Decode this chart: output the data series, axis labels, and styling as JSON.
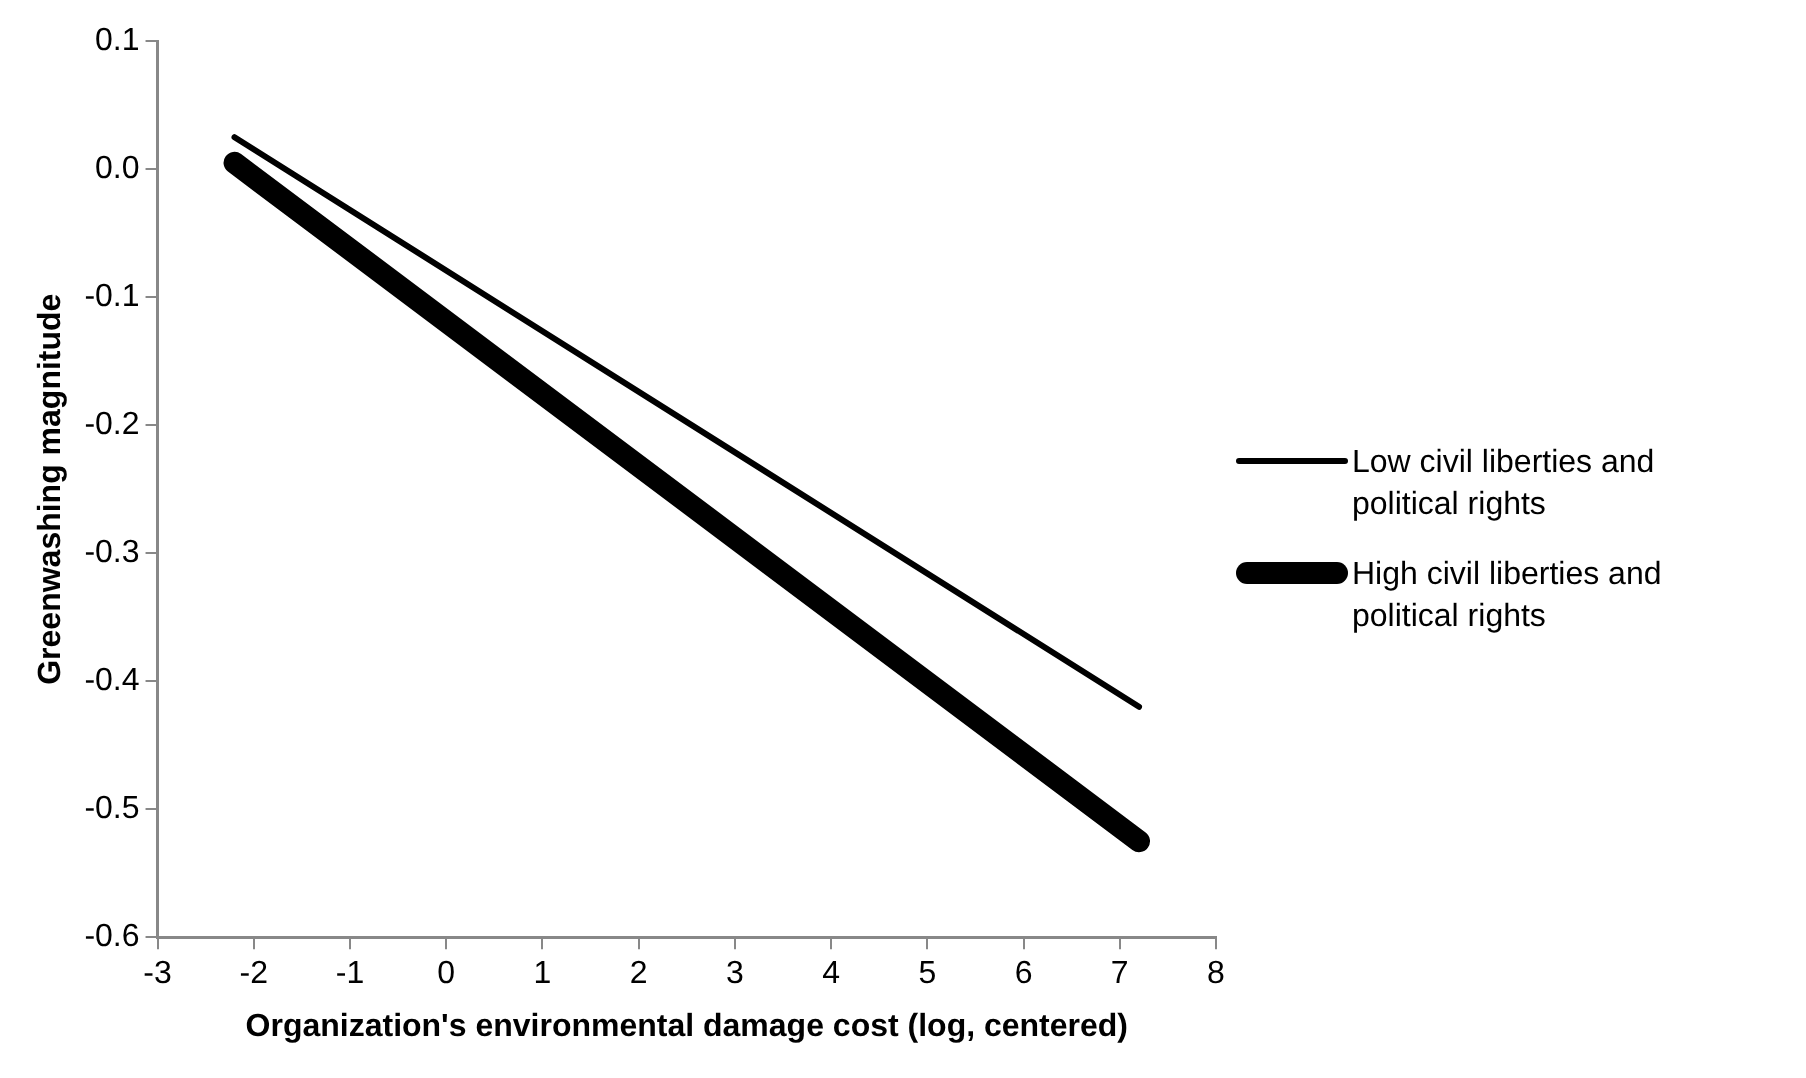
{
  "chart_data": {
    "type": "line",
    "xlabel": "Organization's environmental damage cost (log, centered)",
    "ylabel": "Greenwashing magnitude",
    "x": [
      -2.2,
      7.2
    ],
    "series": [
      {
        "name": "Low civil liberties and political rights",
        "color": "#000000",
        "values": [
          0.025,
          -0.42
        ]
      },
      {
        "name": "High civil liberties and political rights",
        "color": "#000000",
        "values": [
          0.005,
          -0.525
        ]
      }
    ],
    "xlim": [
      -3,
      8
    ],
    "xticks": [
      -3,
      -2,
      -1,
      0,
      1,
      2,
      3,
      4,
      5,
      6,
      7,
      8
    ],
    "ylim": [
      -0.6,
      0.1
    ],
    "yticks": [
      {
        "value": -0.6,
        "label": "-0.6"
      },
      {
        "value": -0.5,
        "label": "-0.5"
      },
      {
        "value": -0.4,
        "label": "-0.4"
      },
      {
        "value": -0.3,
        "label": "-0.3"
      },
      {
        "value": -0.2,
        "label": "-0.2"
      },
      {
        "value": -0.1,
        "label": "-0.1"
      },
      {
        "value": 0,
        "label": "0.0"
      },
      {
        "value": 0.1,
        "label": "0.1"
      }
    ],
    "grid": false,
    "legend": "right",
    "marker": "none",
    "line_style": "solid"
  }
}
